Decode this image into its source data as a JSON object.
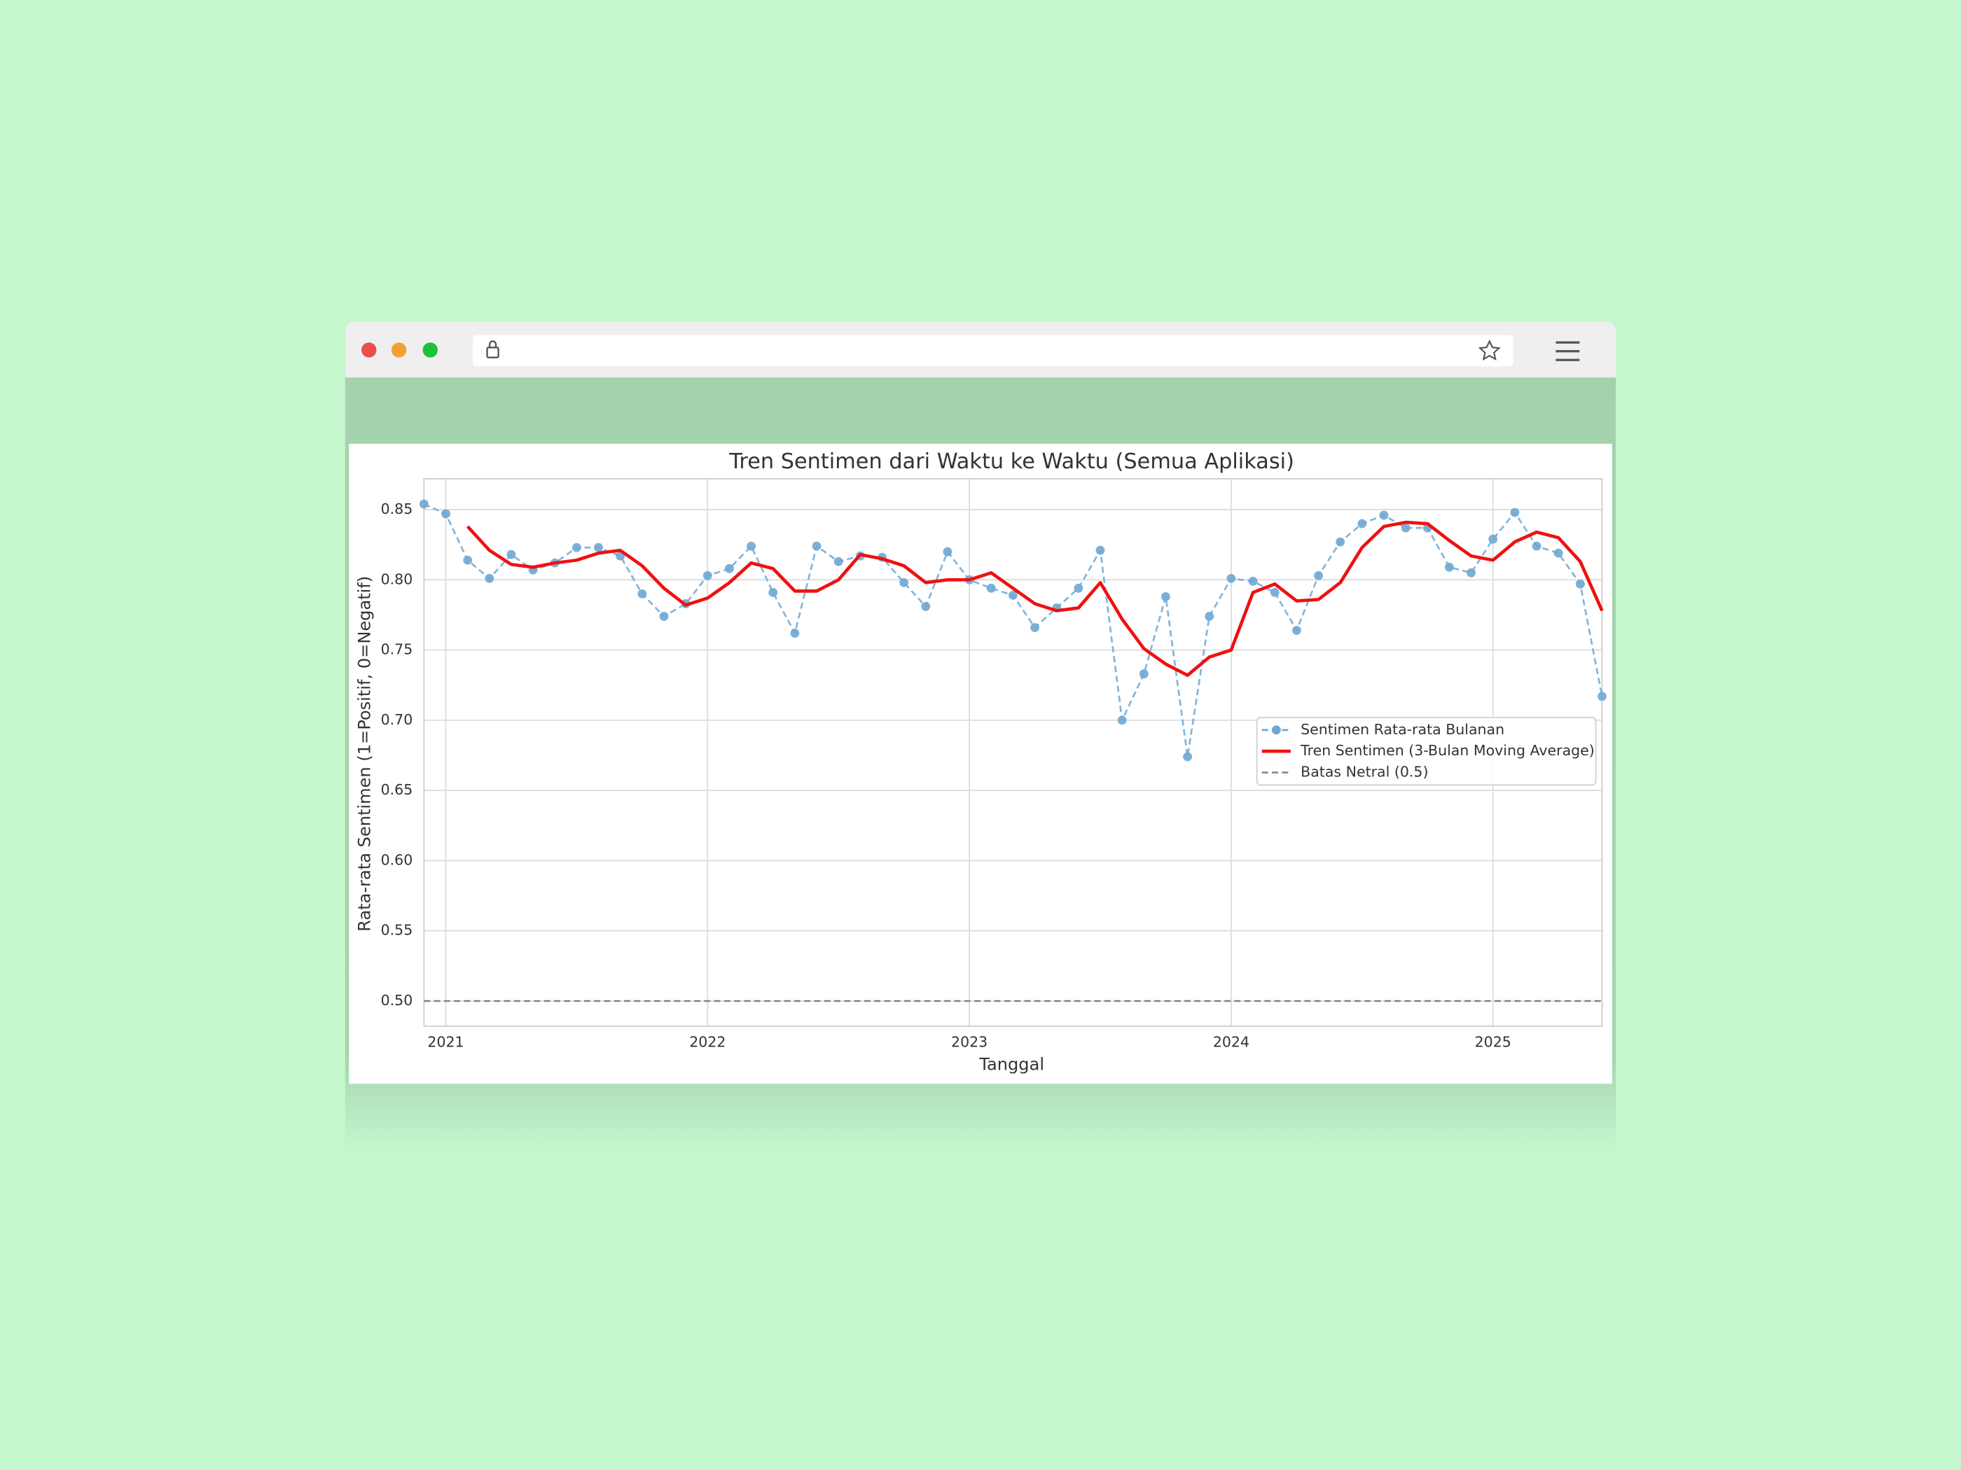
{
  "chart_data": {
    "type": "line",
    "title": "Tren Sentimen dari Waktu ke Waktu (Semua Aplikasi)",
    "x_label": "Tanggal",
    "y_label": "Rata-rata Sentimen (1=Positif, 0=Negatif)",
    "x": [
      "2020-12",
      "2021-01",
      "2021-02",
      "2021-03",
      "2021-04",
      "2021-05",
      "2021-06",
      "2021-07",
      "2021-08",
      "2021-09",
      "2021-10",
      "2021-11",
      "2021-12",
      "2022-01",
      "2022-02",
      "2022-03",
      "2022-04",
      "2022-05",
      "2022-06",
      "2022-07",
      "2022-08",
      "2022-09",
      "2022-10",
      "2022-11",
      "2022-12",
      "2023-01",
      "2023-02",
      "2023-03",
      "2023-04",
      "2023-05",
      "2023-06",
      "2023-07",
      "2023-08",
      "2023-09",
      "2023-10",
      "2023-11",
      "2023-12",
      "2024-01",
      "2024-02",
      "2024-03",
      "2024-04",
      "2024-05",
      "2024-06",
      "2024-07",
      "2024-08",
      "2024-09",
      "2024-10",
      "2024-11",
      "2024-12",
      "2025-01",
      "2025-02",
      "2025-03",
      "2025-04",
      "2025-05",
      "2025-06"
    ],
    "series": [
      {
        "name": "Sentimen Rata-rata Bulanan",
        "color": "#6fa7d3",
        "style": "dashed-markers",
        "values": [
          0.854,
          0.847,
          0.814,
          0.801,
          0.818,
          0.807,
          0.812,
          0.823,
          0.823,
          0.817,
          0.79,
          0.774,
          0.783,
          0.803,
          0.808,
          0.824,
          0.791,
          0.762,
          0.824,
          0.813,
          0.817,
          0.816,
          0.798,
          0.781,
          0.82,
          0.8,
          0.794,
          0.789,
          0.766,
          0.78,
          0.794,
          0.821,
          0.7,
          0.733,
          0.788,
          0.674,
          0.774,
          0.801,
          0.799,
          0.791,
          0.764,
          0.803,
          0.827,
          0.84,
          0.846,
          0.837,
          0.837,
          0.809,
          0.805,
          0.829,
          0.848,
          0.824,
          0.819,
          0.797,
          0.717
        ]
      },
      {
        "name": "Tren Sentimen (3-Bulan Moving Average)",
        "color": "#ee1111",
        "style": "solid",
        "values": [
          null,
          null,
          0.838,
          0.821,
          0.811,
          0.809,
          0.812,
          0.814,
          0.819,
          0.821,
          0.81,
          0.794,
          0.782,
          0.787,
          0.798,
          0.812,
          0.808,
          0.792,
          0.792,
          0.8,
          0.818,
          0.815,
          0.81,
          0.798,
          0.8,
          0.8,
          0.805,
          0.794,
          0.783,
          0.778,
          0.78,
          0.798,
          0.772,
          0.751,
          0.74,
          0.732,
          0.745,
          0.75,
          0.791,
          0.797,
          0.785,
          0.786,
          0.798,
          0.823,
          0.838,
          0.841,
          0.84,
          0.828,
          0.817,
          0.814,
          0.827,
          0.834,
          0.83,
          0.813,
          0.778
        ]
      }
    ],
    "neutral_line": {
      "name": "Batas Netral (0.5)",
      "value": 0.5,
      "color": "#808080"
    },
    "xlim": [
      "2020-12",
      "2025-06"
    ],
    "xticks": [
      {
        "value": "2021-01",
        "label": "2021"
      },
      {
        "value": "2022-01",
        "label": "2022"
      },
      {
        "value": "2023-01",
        "label": "2023"
      },
      {
        "value": "2024-01",
        "label": "2024"
      },
      {
        "value": "2025-01",
        "label": "2025"
      }
    ],
    "ylim": [
      0.482,
      0.872
    ],
    "yticks": [
      {
        "value": 0.5,
        "label": "0.50"
      },
      {
        "value": 0.55,
        "label": "0.55"
      },
      {
        "value": 0.6,
        "label": "0.60"
      },
      {
        "value": 0.65,
        "label": "0.65"
      },
      {
        "value": 0.7,
        "label": "0.70"
      },
      {
        "value": 0.75,
        "label": "0.75"
      },
      {
        "value": 0.8,
        "label": "0.80"
      },
      {
        "value": 0.85,
        "label": "0.85"
      }
    ],
    "grid": true,
    "legend": "center-right"
  }
}
